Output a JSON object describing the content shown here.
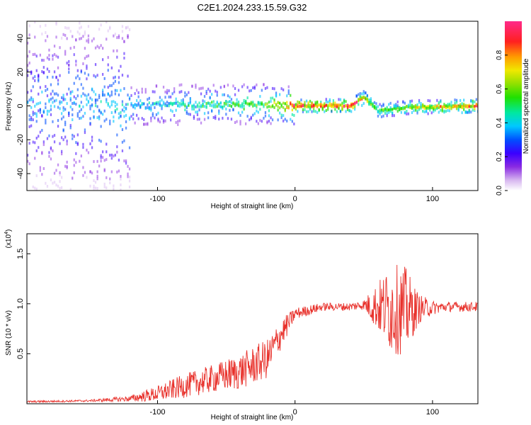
{
  "page": {
    "title": "C2E1.2024.233.15.59.G32"
  },
  "chart_data": [
    {
      "type": "heatmap",
      "title": "C2E1.2024.233.15.59.G32",
      "xlabel": "Height of straight line (km)",
      "ylabel": "Frequency (Hz)",
      "xlim": [
        -195,
        133
      ],
      "ylim": [
        -50,
        50
      ],
      "x_ticks": [
        -100,
        0,
        100
      ],
      "x_tick_labels": [
        "-100",
        "0",
        "100"
      ],
      "y_ticks": [
        -40,
        -20,
        0,
        20,
        40
      ],
      "y_tick_labels": [
        "-40",
        "-20",
        "0",
        "20",
        "40"
      ],
      "colorbar": {
        "label": "Normalized spectral amplitude",
        "range": [
          0,
          1
        ],
        "ticks": [
          0.0,
          0.2,
          0.4,
          0.6,
          0.8
        ],
        "tick_labels": [
          "0.0",
          "0.2",
          "0.4",
          "0.6",
          "0.8"
        ]
      },
      "ridge": {
        "description_points_x": [
          -195,
          -120,
          -60,
          -20,
          0,
          40,
          50,
          60,
          80,
          133
        ],
        "center_frequency": [
          0,
          0,
          1,
          1,
          0,
          0,
          5,
          -3,
          -1,
          0
        ],
        "peak_amplitude": [
          0.35,
          0.45,
          0.55,
          0.65,
          0.95,
          0.98,
          0.9,
          0.6,
          0.7,
          0.95
        ]
      }
    },
    {
      "type": "line",
      "xlabel": "Height of straight line (km)",
      "ylabel": "SNR (10 * v/v)",
      "y_scale_label": "(x10",
      "y_scale_exp": "4",
      "y_scale_close": ")",
      "xlim": [
        -195,
        133
      ],
      "ylim": [
        0,
        1.7
      ],
      "x_ticks": [
        -100,
        0,
        100
      ],
      "x_tick_labels": [
        "-100",
        "0",
        "100"
      ],
      "y_ticks": [
        0.5,
        1.0,
        1.5
      ],
      "y_tick_labels": [
        "0.5",
        "1.0",
        "1.5"
      ],
      "series": [
        {
          "color": "#e8312b",
          "x": [
            -195,
            -150,
            -120,
            -100,
            -80,
            -60,
            -40,
            -20,
            -10,
            0,
            20,
            40,
            50,
            60,
            70,
            80,
            90,
            100,
            110,
            133
          ],
          "y_mean": [
            0.02,
            0.03,
            0.05,
            0.1,
            0.18,
            0.25,
            0.32,
            0.45,
            0.7,
            0.9,
            0.97,
            0.97,
            0.99,
            0.97,
            0.95,
            0.93,
            0.95,
            0.96,
            0.97,
            0.97
          ],
          "y_amplitude": [
            0.01,
            0.01,
            0.03,
            0.08,
            0.12,
            0.14,
            0.18,
            0.2,
            0.15,
            0.06,
            0.04,
            0.04,
            0.05,
            0.25,
            0.45,
            0.45,
            0.15,
            0.07,
            0.05,
            0.05
          ]
        }
      ]
    }
  ]
}
